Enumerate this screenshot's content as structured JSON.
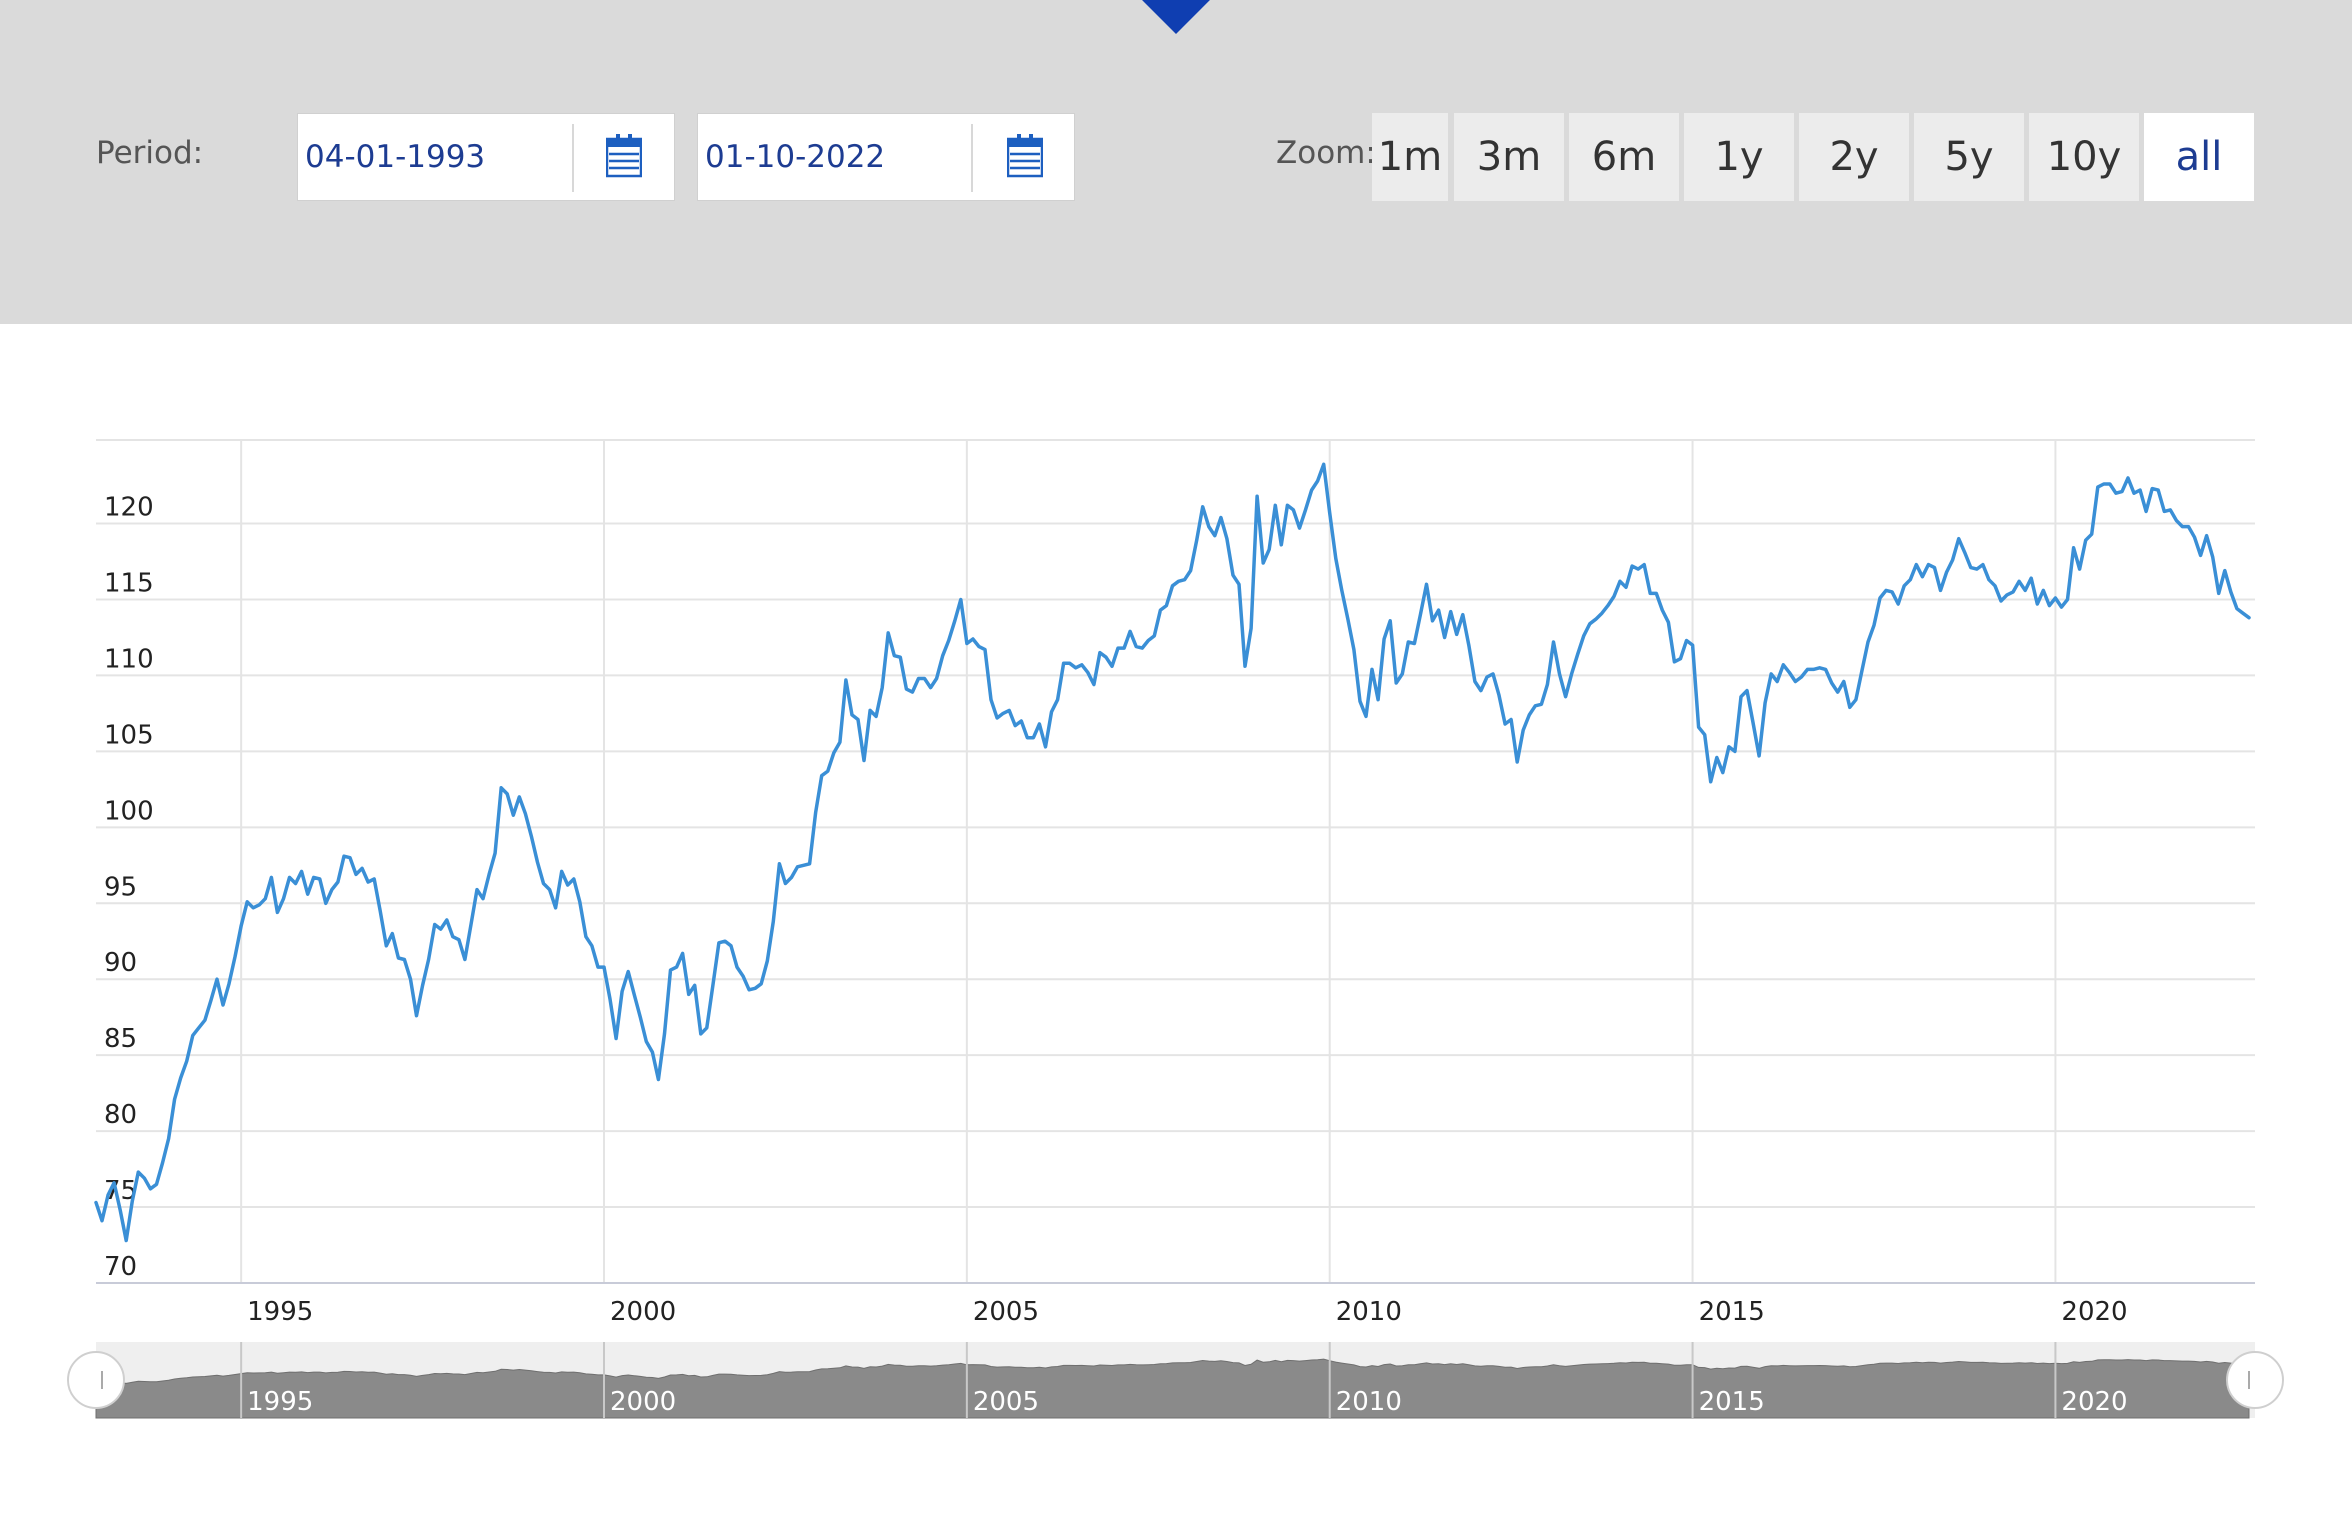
{
  "toolbar": {
    "period_label": "Period:",
    "start_date": "04-01-1993",
    "end_date": "01-10-2022",
    "zoom_label": "Zoom:",
    "zoom_options": [
      "1m",
      "3m",
      "6m",
      "1y",
      "2y",
      "5y",
      "10y",
      "all"
    ],
    "active_zoom": "all",
    "accent_color": "#1d3c92"
  },
  "chart_data": {
    "type": "line",
    "title": "",
    "xlabel": "",
    "ylabel": "",
    "y_ticks": [
      70,
      75,
      80,
      85,
      90,
      95,
      100,
      105,
      110,
      115,
      120
    ],
    "x_ticks": [
      "1995",
      "2000",
      "2005",
      "2010",
      "2015",
      "2020"
    ],
    "xlim": [
      "1993-01",
      "2022-10"
    ],
    "ylim": [
      70,
      125.5
    ],
    "grid": true,
    "line_color": "#3a8fd6",
    "series": [
      {
        "x_start": "1993-01",
        "interval": "month",
        "values": [
          75.3,
          74.1,
          75.8,
          76.6,
          74.8,
          72.8,
          75.4,
          77.3,
          76.9,
          76.2,
          76.5,
          77.9,
          79.5,
          82.1,
          83.5,
          84.6,
          86.3,
          86.8,
          87.3,
          88.6,
          90.0,
          88.3,
          89.7,
          91.5,
          93.5,
          95.1,
          94.7,
          94.9,
          95.3,
          96.7,
          94.4,
          95.3,
          96.7,
          96.3,
          97.1,
          95.6,
          96.7,
          96.6,
          95.0,
          95.9,
          96.4,
          98.1,
          98.0,
          96.9,
          97.3,
          96.4,
          96.6,
          94.5,
          92.2,
          93.0,
          91.4,
          91.3,
          90.0,
          87.6,
          89.6,
          91.3,
          93.6,
          93.3,
          93.9,
          92.8,
          92.6,
          91.3,
          93.6,
          95.9,
          95.3,
          96.9,
          98.3,
          102.6,
          102.2,
          100.8,
          102.0,
          100.9,
          99.4,
          97.7,
          96.3,
          95.9,
          94.7,
          97.1,
          96.2,
          96.6,
          95.1,
          92.8,
          92.2,
          90.8,
          90.8,
          88.7,
          86.1,
          89.2,
          90.5,
          89.0,
          87.5,
          85.9,
          85.2,
          83.4,
          86.4,
          90.6,
          90.8,
          91.7,
          89.0,
          89.6,
          86.4,
          86.8,
          89.6,
          92.4,
          92.5,
          92.2,
          90.8,
          90.2,
          89.3,
          89.4,
          89.7,
          91.2,
          93.8,
          97.6,
          96.3,
          96.7,
          97.4,
          97.5,
          97.6,
          101.0,
          103.4,
          103.7,
          104.9,
          105.6,
          109.7,
          107.4,
          107.1,
          104.4,
          107.7,
          107.3,
          109.2,
          112.8,
          111.3,
          111.2,
          109.1,
          108.9,
          109.8,
          109.8,
          109.2,
          109.8,
          111.3,
          112.3,
          113.6,
          115.0,
          112.1,
          112.4,
          111.9,
          111.7,
          108.4,
          107.2,
          107.5,
          107.7,
          106.7,
          107.0,
          105.9,
          105.9,
          106.8,
          105.3,
          107.6,
          108.4,
          110.8,
          110.8,
          110.5,
          110.7,
          110.2,
          109.4,
          111.5,
          111.2,
          110.6,
          111.8,
          111.8,
          112.9,
          111.9,
          111.8,
          112.3,
          112.6,
          114.3,
          114.6,
          115.9,
          116.2,
          116.3,
          116.9,
          118.9,
          121.1,
          119.8,
          119.2,
          120.4,
          119.0,
          116.6,
          116.0,
          110.6,
          113.1,
          121.8,
          117.4,
          118.3,
          121.2,
          118.6,
          121.2,
          120.9,
          119.7,
          120.9,
          122.2,
          122.8,
          123.9,
          120.7,
          117.7,
          115.6,
          113.7,
          111.7,
          108.3,
          107.3,
          110.4,
          108.4,
          112.4,
          113.6,
          109.5,
          110.1,
          112.2,
          112.1,
          114.0,
          116.0,
          113.6,
          114.3,
          112.5,
          114.2,
          112.7,
          114.0,
          112.0,
          109.6,
          109.0,
          109.9,
          110.1,
          108.7,
          106.8,
          107.1,
          104.3,
          106.4,
          107.4,
          108.0,
          108.1,
          109.4,
          112.2,
          110.1,
          108.6,
          110.1,
          111.4,
          112.6,
          113.4,
          113.7,
          114.1,
          114.6,
          115.2,
          116.2,
          115.8,
          117.2,
          117.0,
          117.3,
          115.4,
          115.4,
          114.3,
          113.5,
          110.9,
          111.1,
          112.3,
          112.0,
          106.6,
          106.1,
          103.0,
          104.6,
          103.6,
          105.3,
          105.0,
          108.6,
          109.0,
          106.9,
          104.7,
          108.2,
          110.1,
          109.6,
          110.7,
          110.2,
          109.6,
          109.9,
          110.4,
          110.4,
          110.5,
          110.4,
          109.5,
          108.9,
          109.6,
          107.9,
          108.4,
          110.3,
          112.2,
          113.3,
          115.1,
          115.6,
          115.5,
          114.7,
          115.9,
          116.3,
          117.3,
          116.5,
          117.3,
          117.1,
          115.6,
          116.8,
          117.6,
          119.0,
          118.1,
          117.1,
          117.0,
          117.3,
          116.3,
          115.9,
          114.9,
          115.3,
          115.5,
          116.2,
          115.6,
          116.4,
          114.7,
          115.6,
          114.6,
          115.1,
          114.5,
          115.0,
          118.4,
          117.0,
          118.9,
          119.3,
          122.4,
          122.6,
          122.6,
          122.0,
          122.1,
          123.0,
          122.0,
          122.2,
          120.8,
          122.3,
          122.2,
          120.8,
          120.9,
          120.2,
          119.8,
          119.8,
          119.1,
          117.9,
          119.2,
          117.8,
          115.4,
          116.9,
          115.5,
          114.4,
          114.1,
          113.8
        ]
      }
    ]
  }
}
